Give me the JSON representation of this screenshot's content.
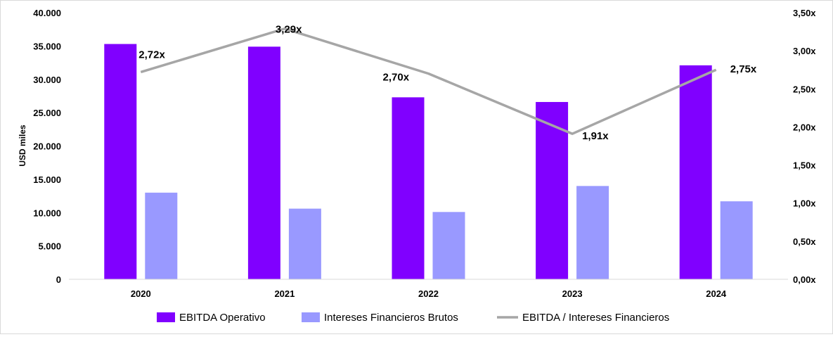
{
  "chart_data": {
    "type": "bar",
    "categories": [
      "2020",
      "2021",
      "2022",
      "2023",
      "2024"
    ],
    "ylabel": "USD miles",
    "ylim": [
      0,
      40000
    ],
    "y_ticks": [
      "0",
      "5.000",
      "10.000",
      "15.000",
      "20.000",
      "25.000",
      "30.000",
      "35.000",
      "40.000"
    ],
    "y2lim": [
      0,
      3.5
    ],
    "y2_ticks": [
      "0,00x",
      "0,50x",
      "1,00x",
      "1,50x",
      "2,00x",
      "2,50x",
      "3,00x",
      "3,50x"
    ],
    "grid": false,
    "legend_position": "bottom",
    "series": [
      {
        "name": "EBITDA Operativo",
        "type": "bar",
        "axis": "left",
        "color": "#8000ff",
        "values": [
          35300,
          34900,
          27300,
          26600,
          32100
        ]
      },
      {
        "name": "Intereses Financieros Brutos",
        "type": "bar",
        "axis": "left",
        "color": "#9999ff",
        "values": [
          13000,
          10600,
          10100,
          14000,
          11700
        ]
      },
      {
        "name": "EBITDA / Intereses Financieros",
        "type": "line",
        "axis": "right",
        "color": "#a6a6a6",
        "values": [
          2.72,
          3.29,
          2.7,
          1.91,
          2.75
        ],
        "labels": [
          "2,72x",
          "3,29x",
          "2,70x",
          "1,91x",
          "2,75x"
        ]
      }
    ]
  }
}
